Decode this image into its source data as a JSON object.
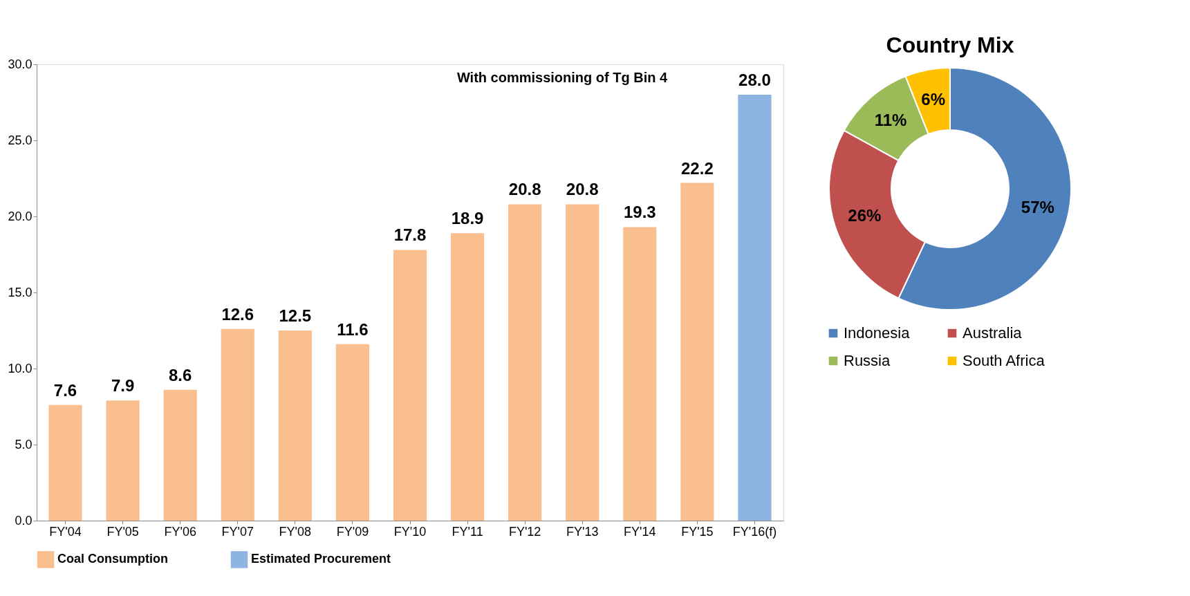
{
  "chart_data": [
    {
      "type": "bar",
      "categories": [
        "FY'04",
        "FY'05",
        "FY'06",
        "FY'07",
        "FY'08",
        "FY'09",
        "FY'10",
        "FY'11",
        "FY'12",
        "FY'13",
        "FY'14",
        "FY'15",
        "FY'16(f)"
      ],
      "series": [
        {
          "name": "Coal Consumption",
          "color": "#f9bf8f",
          "values": [
            7.6,
            7.9,
            8.6,
            12.6,
            12.5,
            11.6,
            17.8,
            18.9,
            20.8,
            20.8,
            19.3,
            22.2,
            null
          ],
          "value_labels": [
            "7.6",
            "7.9",
            "8.6",
            "12.6",
            "12.5",
            "11.6",
            "17.8",
            "18.9",
            "20.8",
            "20.8",
            "19.3",
            "22.2",
            null
          ]
        },
        {
          "name": "Estimated Procurement",
          "color": "#8eb4e3",
          "values": [
            null,
            null,
            null,
            null,
            null,
            null,
            null,
            null,
            null,
            null,
            null,
            null,
            28.0
          ],
          "value_labels": [
            null,
            null,
            null,
            null,
            null,
            null,
            null,
            null,
            null,
            null,
            null,
            null,
            "28.0"
          ]
        }
      ],
      "ylim": [
        0,
        30
      ],
      "yticks": [
        {
          "value": 0,
          "label": "0.0"
        },
        {
          "value": 5,
          "label": "5.0"
        },
        {
          "value": 10,
          "label": "10.0"
        },
        {
          "value": 15,
          "label": "15.0"
        },
        {
          "value": 20,
          "label": "20.0"
        },
        {
          "value": 25,
          "label": "25.0"
        },
        {
          "value": 30,
          "label": "30.0"
        }
      ],
      "grid": false,
      "legend": "bottom",
      "annotations": [
        "With commissioning of Tg Bin 4"
      ]
    },
    {
      "type": "donut",
      "title": "Country Mix",
      "categories": [
        "Indonesia",
        "Australia",
        "Russia",
        "South Africa"
      ],
      "values": [
        57,
        26,
        11,
        6
      ],
      "value_labels": [
        "57%",
        "26%",
        "11%",
        "6%"
      ],
      "colors": [
        "#4f81bd",
        "#c0504d",
        "#9bbb59",
        "#ffc000"
      ],
      "legend": "bottom"
    }
  ]
}
